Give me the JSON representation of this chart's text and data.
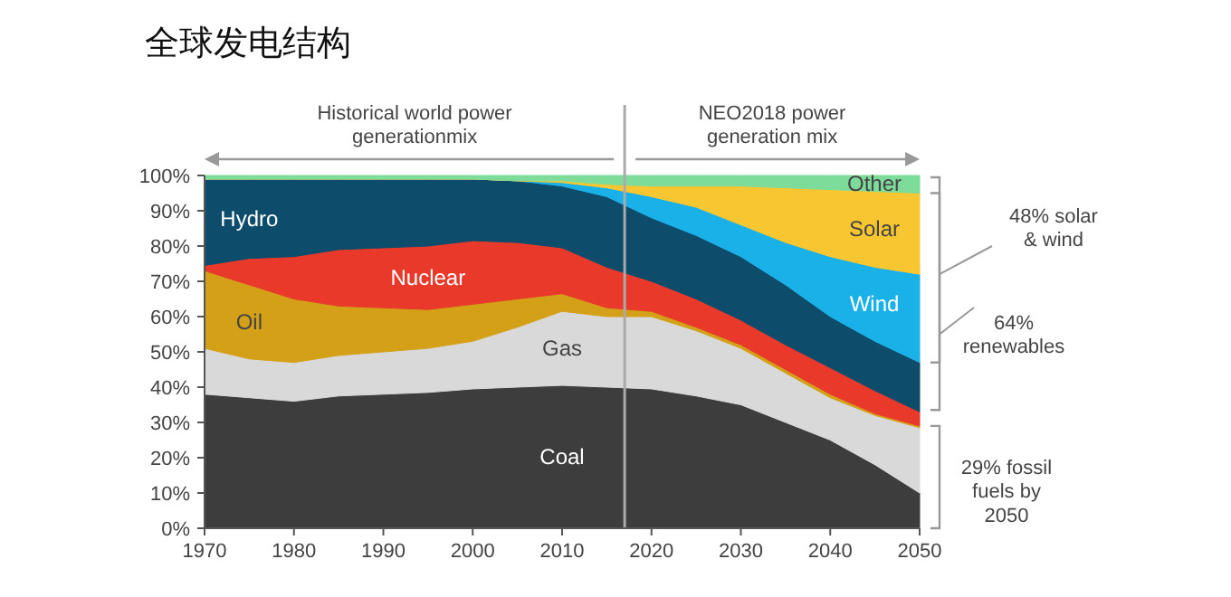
{
  "chart_data": {
    "type": "area",
    "stacked": true,
    "title": "全球发电结构",
    "x": [
      1970,
      1975,
      1980,
      1985,
      1990,
      1995,
      2000,
      2005,
      2010,
      2015,
      2020,
      2025,
      2030,
      2035,
      2040,
      2045,
      2050
    ],
    "series": [
      {
        "name": "Coal",
        "color": "#3d3d3d",
        "values": [
          38,
          37,
          36,
          37.5,
          38,
          38.5,
          39.5,
          40,
          40.5,
          40,
          39.5,
          37.5,
          35,
          30,
          25,
          18,
          10
        ]
      },
      {
        "name": "Gas",
        "color": "#d9d9d9",
        "values": [
          13,
          11,
          11,
          11.5,
          12,
          12.5,
          13.5,
          17,
          21,
          20,
          20.5,
          18.5,
          16,
          14,
          12,
          14,
          18.5
        ]
      },
      {
        "name": "Oil",
        "color": "#d4a017",
        "values": [
          22,
          21,
          18,
          14,
          12.5,
          11,
          10.5,
          8,
          5,
          2.5,
          1.5,
          1,
          1,
          1,
          1,
          0.5,
          0.5
        ]
      },
      {
        "name": "Nuclear",
        "color": "#e8392a",
        "values": [
          1.5,
          7.5,
          12,
          16,
          17,
          18,
          18,
          16,
          13,
          11.5,
          8.5,
          8,
          7,
          7,
          7.5,
          6.5,
          4
        ]
      },
      {
        "name": "Hydro",
        "color": "#0e4c6b",
        "values": [
          24.5,
          22.5,
          22,
          20,
          19.5,
          19,
          17.5,
          17.5,
          17.5,
          20,
          18,
          18,
          18,
          17,
          14.5,
          14,
          14
        ]
      },
      {
        "name": "Wind",
        "color": "#1ab0e8",
        "values": [
          0,
          0,
          0,
          0,
          0,
          0,
          0,
          0,
          1,
          2.5,
          6,
          8,
          9,
          12,
          17,
          21,
          25
        ]
      },
      {
        "name": "Solar",
        "color": "#f8c630",
        "values": [
          0,
          0,
          0,
          0,
          0,
          0,
          0,
          0,
          0.5,
          1,
          3,
          6,
          11,
          15.5,
          19,
          21.5,
          23
        ]
      },
      {
        "name": "Other",
        "color": "#7ddc9a",
        "values": [
          1,
          1,
          1,
          1,
          1,
          1,
          1,
          1.5,
          1.5,
          2.5,
          3,
          3,
          3,
          3.5,
          4,
          4.5,
          5
        ]
      }
    ],
    "xlim": [
      1970,
      2050
    ],
    "xticks": [
      1970,
      1980,
      1990,
      2000,
      2010,
      2020,
      2030,
      2040,
      2050
    ],
    "ylim": [
      0,
      100
    ],
    "yticks": [
      {
        "value": 0,
        "label": "0%"
      },
      {
        "value": 10,
        "label": "10%"
      },
      {
        "value": 20,
        "label": "20%"
      },
      {
        "value": 30,
        "label": "30%"
      },
      {
        "value": 40,
        "label": "40%"
      },
      {
        "value": 50,
        "label": "50%"
      },
      {
        "value": 60,
        "label": "60%"
      },
      {
        "value": 70,
        "label": "70%"
      },
      {
        "value": 80,
        "label": "80%"
      },
      {
        "value": 90,
        "label": "90%"
      },
      {
        "value": 100,
        "label": "100%"
      }
    ],
    "ref_lines": [
      {
        "axis": "x",
        "value": 2017,
        "color": "#aaaaaa"
      }
    ],
    "annotations": [
      "Historical world power generationmix",
      "NEO2018 power generation mix",
      "48% solar & wind",
      "64% renewables",
      "29% fossil fuels by 2050"
    ]
  }
}
